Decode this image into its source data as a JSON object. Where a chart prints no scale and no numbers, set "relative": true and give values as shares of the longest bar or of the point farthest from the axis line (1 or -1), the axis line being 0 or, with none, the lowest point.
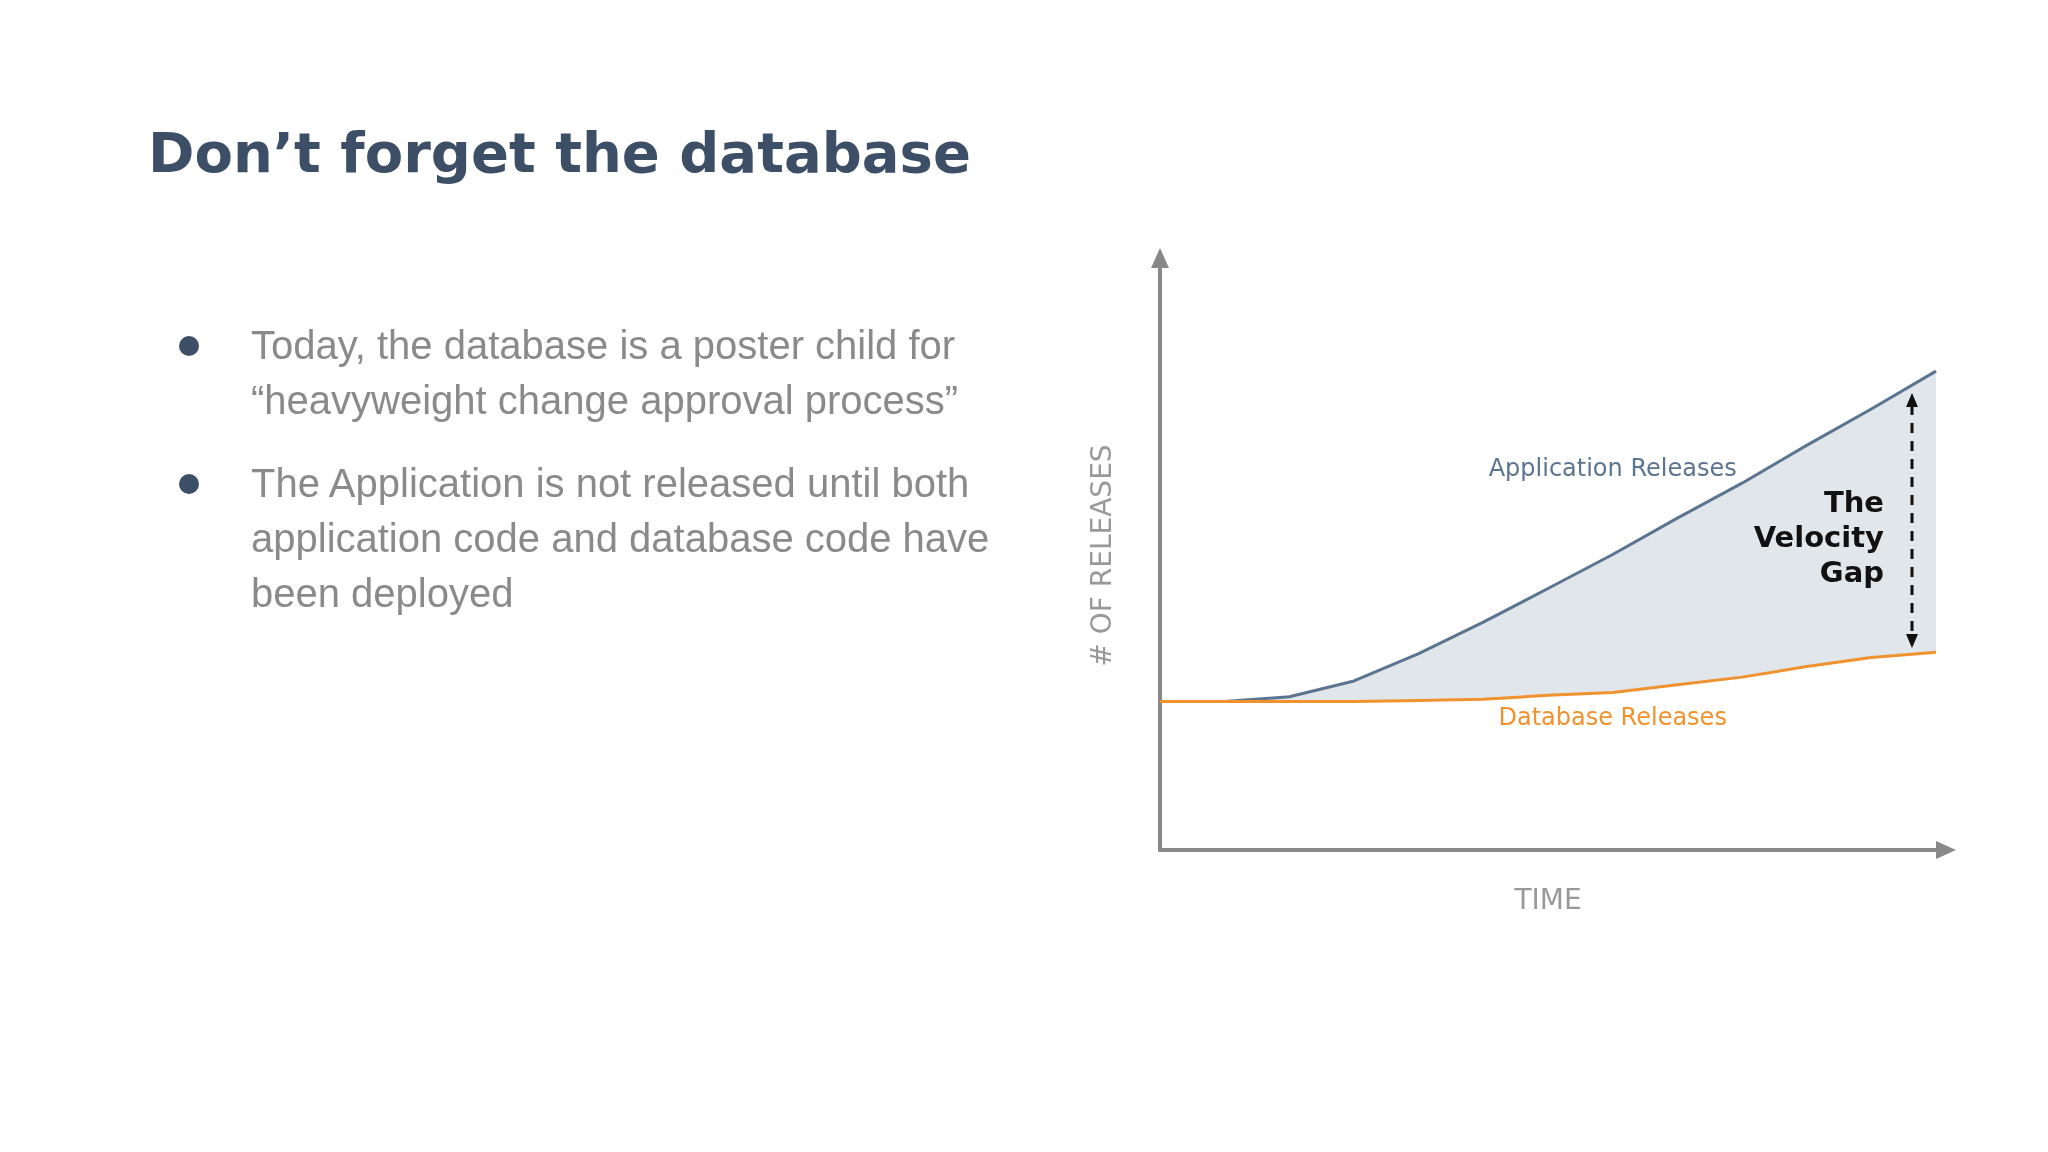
{
  "chart_data": {
    "type": "line",
    "title": "Don’t forget the database",
    "xlabel": "TIME",
    "ylabel": "# OF RELEASES",
    "relative": true,
    "grid": false,
    "legend": false,
    "marker": "none",
    "line_style": "solid",
    "categories": [
      null,
      null,
      null,
      null,
      null,
      null,
      null,
      null,
      null,
      null,
      null,
      null,
      null
    ],
    "series": [
      {
        "name": "Application Releases",
        "color": "#5b7490",
        "values": [
          0.31,
          0.31,
          0.32,
          0.353,
          0.41,
          0.476,
          0.546,
          0.617,
          0.693,
          0.766,
          0.845,
          0.921,
          1
        ],
        "lower": [
          0.31,
          0.31,
          0.31,
          0.31,
          0.312,
          0.315,
          0.323,
          0.329,
          0.345,
          0.361,
          0.383,
          0.402,
          0.413
        ],
        "upper": [
          0.31,
          0.31,
          0.32,
          0.353,
          0.41,
          0.476,
          0.546,
          0.617,
          0.693,
          0.766,
          0.845,
          0.921,
          1
        ]
      },
      {
        "name": "Database Releases",
        "color": "#f0922e",
        "values": [
          0.31,
          0.31,
          0.31,
          0.31,
          0.312,
          0.315,
          0.323,
          0.329,
          0.345,
          0.361,
          0.383,
          0.402,
          0.413
        ]
      }
    ],
    "annotations": [
      "Today, the database is a poster child for “heavyweight change approval process”",
      "The Application is not released until both application code and database code have been deployed",
      "The Velocity Gap"
    ]
  }
}
